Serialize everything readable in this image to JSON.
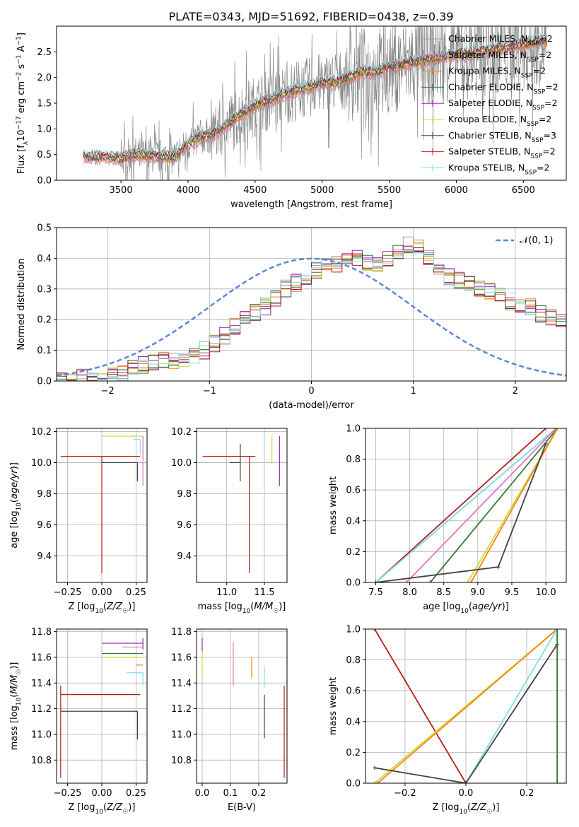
{
  "title": "PLATE=0343, MJD=51692, FIBERID=0438, z=0.39",
  "colors": {
    "chabrier_miles": "#9e9e9e",
    "salpeter_miles": "#e377c2",
    "kroupa_miles": "#ff7f0e",
    "chabrier_elodie": "#2e7d32",
    "salpeter_elodie": "#9c27b0",
    "kroupa_elodie": "#cddc39",
    "chabrier_stelib": "#424242",
    "salpeter_stelib": "#b71c1c",
    "kroupa_stelib": "#80deea",
    "data": "#808080",
    "normal": "#5b87d6"
  },
  "chart_data": [
    {
      "id": "spectrum",
      "type": "line",
      "xlabel": "wavelength [Angstrom, rest frame]",
      "ylabel": "Flux [f_λ 10^-17 erg cm^-2 s^-1 A^-1]",
      "xlim": [
        3020,
        6820
      ],
      "ylim": [
        0,
        3.0
      ],
      "xticks": [
        "3500",
        "4000",
        "4500",
        "5000",
        "5500",
        "6000",
        "6500"
      ],
      "yticks": [
        "0.0",
        "0.5",
        "1.0",
        "1.5",
        "2.0",
        "2.5"
      ],
      "legend": {
        "placement": "top-right",
        "entries": [
          "Chabrier MILES, N_SSP=2",
          "Salpeter MILES, N_SSP=2",
          "Kroupa MILES, N_SSP=2",
          "Chabrier ELODIE, N_SSP=2",
          "Salpeter ELODIE, N_SSP=2",
          "Kroupa ELODIE, N_SSP=2",
          "Chabrier STELIB, N_SSP=3",
          "Salpeter STELIB, N_SSP=2",
          "Kroupa STELIB, N_SSP=2"
        ]
      },
      "model_envelope": {
        "x": [
          3220,
          3400,
          3500,
          3600,
          3700,
          3800,
          3900,
          4000,
          4100,
          4200,
          4300,
          4400,
          4500,
          4600,
          4700,
          4800,
          4900,
          5000,
          5100,
          5200,
          5300,
          5400,
          5500,
          5600,
          5700,
          5800,
          5900,
          6000,
          6100,
          6200,
          6300,
          6400,
          6500,
          6600,
          6680
        ],
        "y": [
          0.45,
          0.46,
          0.42,
          0.5,
          0.48,
          0.46,
          0.45,
          0.7,
          0.85,
          0.9,
          1.1,
          1.3,
          1.45,
          1.55,
          1.65,
          1.75,
          1.8,
          1.9,
          1.9,
          2.0,
          2.1,
          2.1,
          2.2,
          2.25,
          2.3,
          2.35,
          2.4,
          2.45,
          2.45,
          2.5,
          2.55,
          2.6,
          2.65,
          2.7,
          2.7
        ]
      }
    },
    {
      "id": "residuals",
      "type": "histogram",
      "xlabel": "(data-model)/error",
      "ylabel": "Normed distribution",
      "xlim": [
        -2.5,
        2.5
      ],
      "ylim": [
        0,
        0.5
      ],
      "xticks": [
        "−2",
        "−1",
        "0",
        "1",
        "2"
      ],
      "yticks": [
        "0.0",
        "0.1",
        "0.2",
        "0.3",
        "0.4",
        "0.5"
      ],
      "legend": {
        "placement": "top-right",
        "entries": [
          "𝒩(0, 1)"
        ]
      },
      "bin_width": 0.1,
      "x_start": -2.5,
      "envelope": [
        0.005,
        0.008,
        0.01,
        0.012,
        0.015,
        0.02,
        0.03,
        0.04,
        0.05,
        0.06,
        0.065,
        0.07,
        0.075,
        0.08,
        0.1,
        0.12,
        0.15,
        0.18,
        0.2,
        0.22,
        0.24,
        0.27,
        0.3,
        0.32,
        0.34,
        0.36,
        0.37,
        0.38,
        0.39,
        0.4,
        0.39,
        0.38,
        0.4,
        0.42,
        0.44,
        0.43,
        0.4,
        0.37,
        0.34,
        0.33,
        0.32,
        0.3,
        0.29,
        0.28,
        0.26,
        0.25,
        0.24,
        0.22,
        0.21,
        0.2,
        0.19,
        0.18,
        0.16,
        0.15,
        0.14,
        0.13,
        0.12,
        0.11,
        0.1,
        0.1,
        0.09,
        0.09,
        0.08,
        0.08,
        0.07,
        0.07,
        0.06,
        0.06,
        0.05,
        0.05
      ]
    },
    {
      "id": "age_vs_Z",
      "type": "errorbar",
      "xlabel": "Z [log10(Z/Z☉)]",
      "ylabel": "age [log10(age/yr)]",
      "xlim": [
        -0.33,
        0.33
      ],
      "ylim": [
        9.23,
        10.22
      ],
      "xticks": [
        "−0.25",
        "0.00",
        "0.25"
      ],
      "yticks": [
        "9.4",
        "9.6",
        "9.8",
        "10.0",
        "10.2"
      ],
      "points": [
        {
          "model": "salpeter_stelib",
          "x": 0.0,
          "y": 10.04,
          "xerr": [
            0.3,
            0.28
          ],
          "yerr": [
            0.75,
            0.0
          ]
        },
        {
          "model": "chabrier_stelib",
          "x": 0.26,
          "y": 10.0,
          "xerr": [
            0.26,
            0.0
          ],
          "yerr": [
            0.12,
            0.0
          ]
        },
        {
          "model": "kroupa_elodie",
          "x": 0.3,
          "y": 10.17,
          "xerr": [
            0.3,
            0.0
          ],
          "yerr": [
            0.15,
            0.0
          ]
        },
        {
          "model": "kroupa_stelib",
          "x": 0.28,
          "y": 10.15,
          "xerr": [
            0.05,
            0.0
          ],
          "yerr": [
            0.1,
            0.0
          ]
        },
        {
          "model": "salpeter_miles",
          "x": 0.3,
          "y": 10.17,
          "xerr": [
            0.0,
            0.0
          ],
          "yerr": [
            0.32,
            0.0
          ]
        }
      ]
    },
    {
      "id": "age_vs_mass",
      "type": "errorbar",
      "xlabel": "mass [log10(M/M☉)]",
      "ylabel": "",
      "xlim": [
        10.6,
        11.8
      ],
      "ylim": [
        9.23,
        10.22
      ],
      "xticks": [
        "11.0",
        "11.5"
      ],
      "yticks": [
        "9.4",
        "9.6",
        "9.8",
        "10.0",
        "10.2"
      ],
      "points": [
        {
          "model": "salpeter_stelib",
          "x": 11.3,
          "y": 10.04,
          "xerr": [
            0.62,
            0.08
          ],
          "yerr": [
            0.75,
            0.0
          ]
        },
        {
          "model": "chabrier_stelib",
          "x": 11.18,
          "y": 10.0,
          "xerr": [
            0.14,
            0.0
          ],
          "yerr": [
            0.12,
            0.12
          ]
        },
        {
          "model": "kroupa_elodie",
          "x": 11.6,
          "y": 10.17,
          "xerr": [
            0.0,
            0.0
          ],
          "yerr": [
            0.18,
            0.0
          ]
        },
        {
          "model": "salpeter_elodie",
          "x": 11.7,
          "y": 10.17,
          "xerr": [
            0.0,
            0.0
          ],
          "yerr": [
            0.32,
            0.0
          ]
        },
        {
          "model": "kroupa_stelib",
          "x": 11.5,
          "y": 10.15,
          "xerr": [
            0.0,
            0.0
          ],
          "yerr": [
            0.08,
            0.0
          ]
        }
      ]
    },
    {
      "id": "weight_vs_age",
      "type": "line",
      "xlabel": "age [log10(age/yr)]",
      "ylabel": "mass weight",
      "xlim": [
        7.35,
        10.3
      ],
      "ylim": [
        0,
        1.0
      ],
      "xticks": [
        "7.5",
        "8.0",
        "8.5",
        "9.0",
        "9.5",
        "10.0"
      ],
      "yticks": [
        "0.0",
        "0.2",
        "0.4",
        "0.6",
        "0.8",
        "1.0"
      ],
      "series": [
        {
          "model": "salpeter_stelib",
          "x": [
            7.5,
            10.0
          ],
          "y": [
            0.0,
            1.0
          ]
        },
        {
          "model": "chabrier_miles",
          "x": [
            7.5,
            10.15
          ],
          "y": [
            0.0,
            1.0
          ]
        },
        {
          "model": "kroupa_stelib",
          "x": [
            7.5,
            10.15
          ],
          "y": [
            0.0,
            1.0
          ]
        },
        {
          "model": "salpeter_miles",
          "x": [
            7.95,
            10.15
          ],
          "y": [
            0.0,
            1.0
          ]
        },
        {
          "model": "chabrier_elodie",
          "x": [
            8.3,
            10.17
          ],
          "y": [
            0.0,
            1.0
          ]
        },
        {
          "model": "kroupa_elodie",
          "x": [
            8.85,
            10.17
          ],
          "y": [
            0.0,
            1.0
          ]
        },
        {
          "model": "kroupa_miles",
          "x": [
            8.9,
            10.17
          ],
          "y": [
            0.0,
            1.0
          ]
        },
        {
          "model": "chabrier_stelib",
          "x": [
            7.5,
            9.3,
            10.0
          ],
          "y": [
            0.0,
            0.1,
            0.9
          ]
        }
      ]
    },
    {
      "id": "mass_vs_Z",
      "type": "errorbar",
      "xlabel": "Z [log10(Z/Z☉)]",
      "ylabel": "mass [log10(M/M☉)]",
      "xlim": [
        -0.33,
        0.33
      ],
      "ylim": [
        10.62,
        11.82
      ],
      "xticks": [
        "−0.25",
        "0.00",
        "0.25"
      ],
      "yticks": [
        "10.8",
        "11.0",
        "11.2",
        "11.4",
        "11.6",
        "11.8"
      ],
      "points": [
        {
          "model": "salpeter_stelib",
          "x": -0.3,
          "y": 11.31,
          "xerr": [
            0.0,
            0.58
          ],
          "yerr": [
            0.65,
            0.07
          ]
        },
        {
          "model": "chabrier_stelib",
          "x": 0.26,
          "y": 11.18,
          "xerr": [
            0.56,
            0.0
          ],
          "yerr": [
            0.22,
            0.0
          ]
        },
        {
          "model": "salpeter_elodie",
          "x": 0.3,
          "y": 11.71,
          "xerr": [
            0.3,
            0.0
          ],
          "yerr": [
            0.05,
            0.04
          ]
        },
        {
          "model": "chabrier_elodie",
          "x": 0.3,
          "y": 11.63,
          "xerr": [
            0.3,
            0.0
          ],
          "yerr": [
            0.0,
            0.0
          ]
        },
        {
          "model": "kroupa_elodie",
          "x": 0.3,
          "y": 11.6,
          "xerr": [
            0.3,
            0.0
          ],
          "yerr": [
            0.0,
            0.0
          ]
        },
        {
          "model": "salpeter_miles",
          "x": 0.3,
          "y": 11.68,
          "xerr": [
            0.15,
            0.0
          ],
          "yerr": [
            0.0,
            0.0
          ]
        },
        {
          "model": "kroupa_miles",
          "x": 0.3,
          "y": 11.54,
          "xerr": [
            0.05,
            0.0
          ],
          "yerr": [
            0.0,
            0.0
          ]
        },
        {
          "model": "kroupa_stelib",
          "x": 0.3,
          "y": 11.48,
          "xerr": [
            0.12,
            0.0
          ],
          "yerr": [
            0.1,
            0.0
          ]
        }
      ]
    },
    {
      "id": "mass_vs_ebv",
      "type": "errorbar",
      "xlabel": "E(B-V)",
      "ylabel": "",
      "xlim": [
        -0.02,
        0.3
      ],
      "ylim": [
        10.62,
        11.82
      ],
      "xticks": [
        "0.0",
        "0.1",
        "0.2"
      ],
      "yticks": [
        "10.8",
        "11.0",
        "11.2",
        "11.4",
        "11.6",
        "11.8"
      ],
      "points": [
        {
          "model": "salpeter_elodie",
          "x": 0.0,
          "y": 11.7,
          "yerr": [
            0.06,
            0.05
          ]
        },
        {
          "model": "kroupa_elodie",
          "x": 0.0,
          "y": 11.6,
          "yerr": [
            0.15,
            0.05
          ]
        },
        {
          "model": "salpeter_miles",
          "x": 0.11,
          "y": 11.55,
          "yerr": [
            0.17,
            0.17
          ]
        },
        {
          "model": "kroupa_miles",
          "x": 0.175,
          "y": 11.52,
          "yerr": [
            0.08,
            0.08
          ]
        },
        {
          "model": "kroupa_stelib",
          "x": 0.22,
          "y": 11.45,
          "yerr": [
            0.08,
            0.08
          ]
        },
        {
          "model": "chabrier_stelib",
          "x": 0.22,
          "y": 11.14,
          "yerr": [
            0.17,
            0.17
          ]
        },
        {
          "model": "salpeter_stelib",
          "x": 0.29,
          "y": 11.02,
          "yerr": [
            0.36,
            0.36
          ]
        }
      ]
    },
    {
      "id": "weight_vs_Z",
      "type": "line",
      "xlabel": "Z [log10(Z/Z☉)]",
      "ylabel": "mass weight",
      "xlim": [
        -0.33,
        0.33
      ],
      "ylim": [
        0,
        1.0
      ],
      "xticks": [
        "−0.2",
        "0.0",
        "0.2"
      ],
      "yticks": [
        "0.0",
        "0.2",
        "0.4",
        "0.6",
        "0.8",
        "1.0"
      ],
      "series": [
        {
          "model": "salpeter_stelib",
          "x": [
            -0.3,
            0.0
          ],
          "y": [
            1.0,
            0.0
          ]
        },
        {
          "model": "kroupa_elodie",
          "x": [
            -0.3,
            0.3
          ],
          "y": [
            0.0,
            1.0
          ]
        },
        {
          "model": "kroupa_miles",
          "x": [
            -0.29,
            0.3
          ],
          "y": [
            0.0,
            1.0
          ]
        },
        {
          "model": "kroupa_stelib",
          "x": [
            0.0,
            0.3
          ],
          "y": [
            0.0,
            1.0
          ]
        },
        {
          "model": "chabrier_stelib",
          "x": [
            -0.3,
            0.0,
            0.3
          ],
          "y": [
            0.1,
            0.0,
            0.9
          ]
        },
        {
          "model": "chabrier_elodie",
          "x": [
            0.3,
            0.3
          ],
          "y": [
            0.0,
            1.0
          ]
        }
      ]
    }
  ]
}
